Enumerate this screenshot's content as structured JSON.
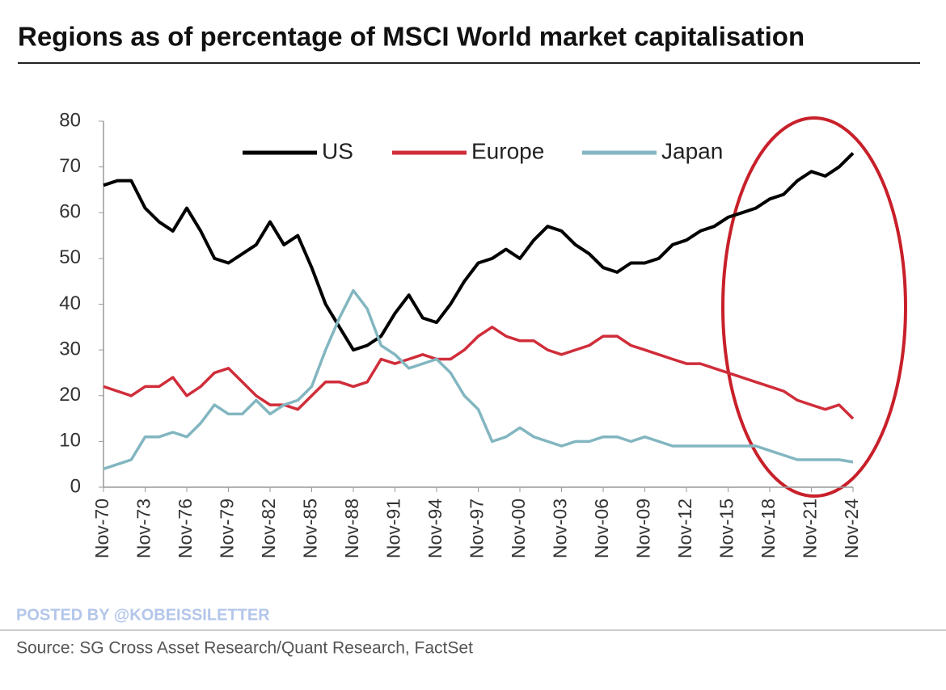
{
  "chart_data": {
    "type": "line",
    "title": "Regions as of percentage of MSCI World market capitalisation",
    "categories": [
      "Nov-70",
      null,
      null,
      "Nov-73",
      null,
      null,
      "Nov-76",
      null,
      null,
      "Nov-79",
      null,
      null,
      "Nov-82",
      null,
      null,
      "Nov-85",
      null,
      null,
      "Nov-88",
      null,
      null,
      "Nov-91",
      null,
      null,
      "Nov-94",
      null,
      null,
      "Nov-97",
      null,
      null,
      "Nov-00",
      null,
      null,
      "Nov-03",
      null,
      null,
      "Nov-06",
      null,
      null,
      "Nov-09",
      null,
      null,
      "Nov-12",
      null,
      null,
      "Nov-15",
      null,
      null,
      "Nov-18",
      null,
      null,
      "Nov-21",
      null,
      null,
      "Nov-24"
    ],
    "series": [
      {
        "name": "US",
        "color": "#000000",
        "values": [
          66,
          67,
          67,
          61,
          58,
          56,
          61,
          56,
          50,
          49,
          51,
          53,
          58,
          53,
          55,
          48,
          40,
          35,
          30,
          31,
          33,
          38,
          42,
          37,
          36,
          40,
          45,
          49,
          50,
          52,
          50,
          54,
          57,
          56,
          53,
          51,
          48,
          47,
          49,
          49,
          50,
          53,
          54,
          56,
          57,
          59,
          60,
          61,
          63,
          64,
          67,
          69,
          68,
          70,
          73
        ]
      },
      {
        "name": "Europe",
        "color": "#d02d3a",
        "values": [
          22,
          21,
          20,
          22,
          22,
          24,
          20,
          22,
          25,
          26,
          23,
          20,
          18,
          18,
          17,
          20,
          23,
          23,
          22,
          23,
          28,
          27,
          28,
          29,
          28,
          28,
          30,
          33,
          35,
          33,
          32,
          32,
          30,
          29,
          30,
          31,
          33,
          33,
          31,
          30,
          29,
          28,
          27,
          27,
          26,
          25,
          24,
          23,
          22,
          21,
          19,
          18,
          17,
          18,
          15
        ]
      },
      {
        "name": "Japan",
        "color": "#82b6c0",
        "values": [
          4,
          5,
          6,
          11,
          11,
          12,
          11,
          14,
          18,
          16,
          16,
          19,
          16,
          18,
          19,
          22,
          30,
          37,
          43,
          39,
          31,
          29,
          26,
          27,
          28,
          25,
          20,
          17,
          10,
          11,
          13,
          11,
          10,
          9,
          10,
          10,
          11,
          11,
          10,
          11,
          10,
          9,
          9,
          9,
          9,
          9,
          9,
          9,
          8,
          7,
          6,
          6,
          6,
          6,
          5.5
        ]
      }
    ],
    "ylim": [
      0,
      80
    ],
    "yticks": [
      0,
      10,
      20,
      30,
      40,
      50,
      60,
      70,
      80
    ],
    "watermark": "POSTED BY @KOBEISSILETTER",
    "source": "Source: SG Cross Asset Research/Quant Research, FactSet"
  }
}
